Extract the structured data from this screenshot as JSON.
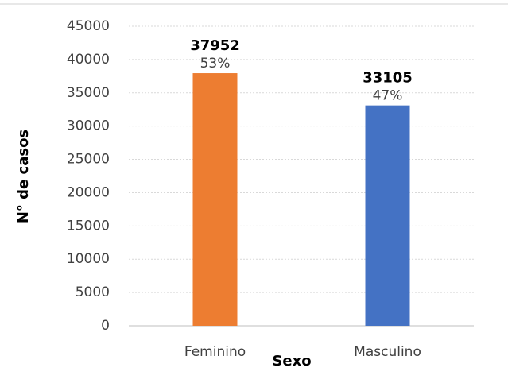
{
  "chart_data": {
    "type": "bar",
    "xlabel": "Sexo",
    "ylabel": "N° de casos",
    "categories": [
      "Feminino",
      "Masculino"
    ],
    "values": [
      37952,
      33105
    ],
    "percent_labels": [
      "53%",
      "47%"
    ],
    "colors": [
      "#ed7d31",
      "#4472c4"
    ],
    "ylim": [
      0,
      45000
    ],
    "yticks": [
      0,
      5000,
      10000,
      15000,
      20000,
      25000,
      30000,
      35000,
      40000,
      45000
    ],
    "grid": true
  }
}
